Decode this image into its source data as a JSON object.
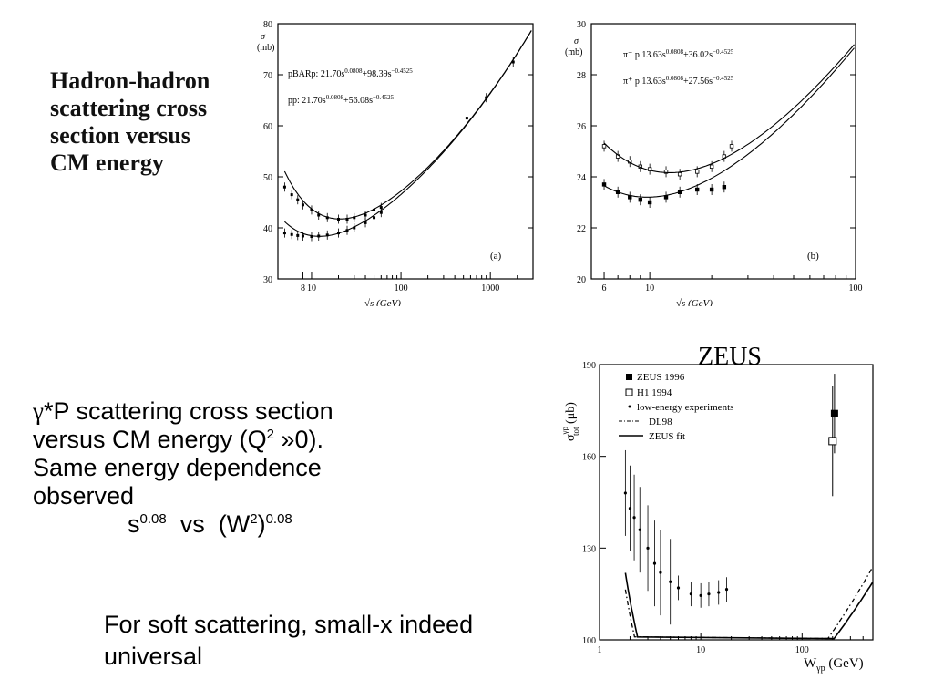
{
  "slide": {
    "hadron_heading": [
      "Hadron-hadron",
      "scattering cross",
      "section versus",
      "CM energy"
    ],
    "gp_lines": [
      "*P scattering cross section",
      "versus CM energy (Q",
      " »0).",
      "Same energy dependence",
      "observed"
    ],
    "gp_gamma": "γ",
    "gp_q_exp": "2",
    "formula": {
      "s": "s",
      "s_exp": "0.08",
      "vs": "vs",
      "w_open": "(W",
      "w_exp2": "2",
      "w_close": ")",
      "w_exp": "0.08"
    },
    "soft_lines": [
      "For soft scattering, small-x indeed",
      "universal"
    ]
  },
  "chart_data": [
    {
      "type": "scatter",
      "panel_label": "(a)",
      "ylabel": "σ (mb)",
      "ylim": [
        30,
        80
      ],
      "yticks": [
        "30",
        "40",
        "50",
        "60",
        "70",
        "80"
      ],
      "xticks": [
        "8",
        "10",
        "100",
        "1000"
      ],
      "xlabel": "√s (GeV)",
      "formulas": [
        {
          "label": "pBARp:",
          "text": "21.70s",
          "e1": "0.0808",
          "mid": "+98.39s",
          "e2": "−0.4525"
        },
        {
          "label": "pp:",
          "text": "21.70s",
          "e1": "0.0808",
          "mid": "+56.08s",
          "e2": "−0.4525"
        }
      ],
      "series": [
        {
          "name": "pBARp",
          "x": [
            5,
            6,
            7,
            8,
            10,
            12,
            15,
            20,
            25,
            30,
            40,
            50,
            60,
            546,
            900,
            1800
          ],
          "y": [
            48,
            46.5,
            45.5,
            44.5,
            43.5,
            42.5,
            42,
            41.7,
            41.7,
            42,
            42.5,
            43.5,
            44,
            61.5,
            65.5,
            72.5
          ]
        },
        {
          "name": "pp",
          "x": [
            5,
            6,
            7,
            8,
            10,
            12,
            15,
            20,
            25,
            30,
            40,
            50,
            60
          ],
          "y": [
            39,
            38.7,
            38.5,
            38.4,
            38.3,
            38.4,
            38.6,
            39,
            39.5,
            40,
            41,
            42,
            43
          ]
        }
      ]
    },
    {
      "type": "scatter",
      "panel_label": "(b)",
      "ylabel": "σ (mb)",
      "ylim": [
        20,
        30
      ],
      "yticks": [
        "20",
        "22",
        "24",
        "26",
        "28",
        "30"
      ],
      "xticks": [
        "6",
        "10",
        "100"
      ],
      "xlabel": "√s (GeV)",
      "formulas": [
        {
          "label": "π⁻ p",
          "text": "13.63s",
          "e1": "0.0808",
          "mid": "+36.02s",
          "e2": "−0.4525"
        },
        {
          "label": "π⁺ p",
          "text": "13.63s",
          "e1": "0.0808",
          "mid": "+27.56s",
          "e2": "−0.4525"
        }
      ],
      "series": [
        {
          "name": "π⁻ p",
          "x": [
            6,
            7,
            8,
            9,
            10,
            12,
            14,
            17,
            20,
            23,
            25
          ],
          "y": [
            25.2,
            24.8,
            24.6,
            24.4,
            24.3,
            24.2,
            24.1,
            24.2,
            24.4,
            24.8,
            25.2
          ]
        },
        {
          "name": "π⁺ p",
          "x": [
            6,
            7,
            8,
            9,
            10,
            12,
            14,
            17,
            20,
            23
          ],
          "y": [
            23.7,
            23.4,
            23.2,
            23.1,
            23.0,
            23.2,
            23.4,
            23.5,
            23.5,
            23.6
          ]
        }
      ]
    },
    {
      "type": "scatter",
      "title": "ZEUS",
      "ylabel": "σ_tot^γp (μb)",
      "ylim": [
        100,
        190
      ],
      "yticks": [
        "100",
        "130",
        "160",
        "190"
      ],
      "xticks": [
        "1",
        "10",
        "100"
      ],
      "xlabel": "W_γp (GeV)",
      "legend": [
        "ZEUS 1996",
        "H1 1994",
        "low-energy experiments",
        "DL98",
        "ZEUS fit"
      ],
      "points": {
        "zeus_1996": {
          "x": 209,
          "y": 174
        },
        "h1_1994": {
          "x": 200,
          "y": 165
        },
        "low_energy": {
          "x": [
            1.8,
            2,
            2.2,
            2.5,
            3,
            3.5,
            4,
            5,
            6,
            8,
            10,
            12,
            15,
            18
          ],
          "y": [
            148,
            143,
            140,
            136,
            130,
            125,
            122,
            119,
            117,
            115,
            114.5,
            115,
            115.5,
            116.5
          ]
        }
      }
    }
  ]
}
